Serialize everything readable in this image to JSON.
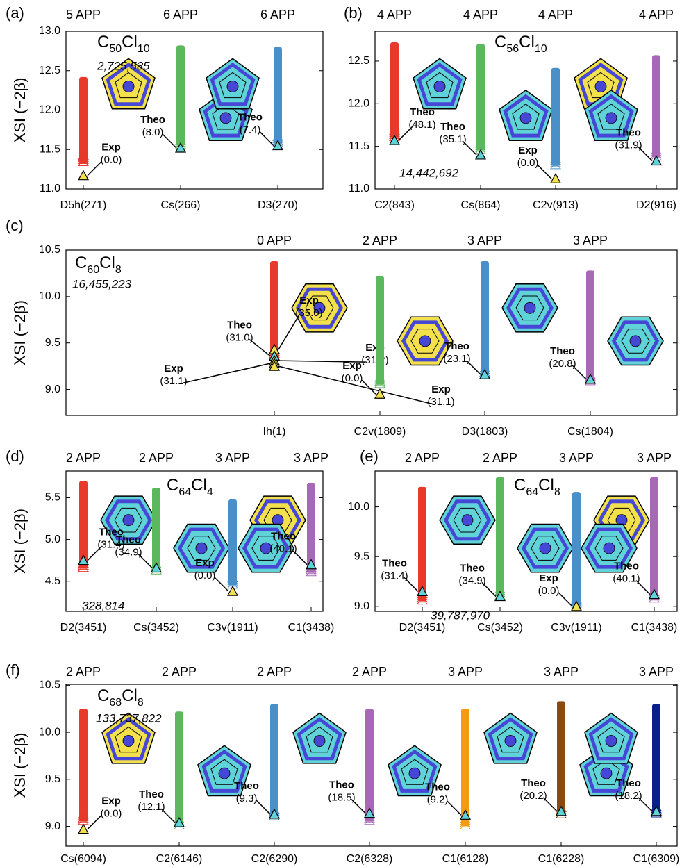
{
  "chart_data": [
    {
      "type": "range",
      "label": "(a)",
      "title": "C50Cl10",
      "count": "2,725,535",
      "ylabel": "XSI (−2β)",
      "ylim": [
        11.0,
        13.0
      ],
      "yticks": [
        {
          "value": 11,
          "label": "11.0"
        },
        11.5,
        {
          "value": 12,
          "label": "12.0"
        },
        12.5,
        {
          "value": 13,
          "label": "13.0"
        }
      ],
      "top_labels": [
        "5 APP",
        "6 APP",
        "6 APP"
      ],
      "categories": [
        "D5h(271)",
        "Cs(266)",
        "D3(270)"
      ],
      "ranges": [
        {
          "low": 11.33,
          "high": 12.42,
          "color": "#e8392b",
          "markers": [
            {
              "y": 11.17,
              "kind": "Exp",
              "energy": "(0.0)",
              "color": "#f2e14c"
            }
          ]
        },
        {
          "low": 11.55,
          "high": 12.82,
          "color": "#5cb85c",
          "markers": [
            {
              "y": 11.52,
              "kind": "Theo",
              "energy": "(8.0)",
              "color": "#5fd3d8"
            }
          ]
        },
        {
          "low": 11.57,
          "high": 12.8,
          "color": "#4a90c8",
          "markers": [
            {
              "y": 11.55,
              "kind": "Theo",
              "energy": "(7.4)",
              "color": "#5fd3d8"
            }
          ]
        }
      ]
    },
    {
      "type": "range",
      "label": "(b)",
      "title": "C56Cl10",
      "count": "14,442,692",
      "ylim": [
        11.0,
        12.85
      ],
      "yticks": [
        {
          "value": 11,
          "label": "11.0"
        },
        11.5,
        {
          "value": 12,
          "label": "12.0"
        },
        12.5
      ],
      "top_labels": [
        "4 APP",
        "4 APP",
        "4 APP",
        "4 APP"
      ],
      "categories": [
        "C2(843)",
        "Cs(864)",
        "C2v(913)",
        "D2(916)"
      ],
      "ranges": [
        {
          "low": 11.6,
          "high": 12.72,
          "color": "#e8392b",
          "markers": [
            {
              "y": 11.57,
              "kind": "Theo",
              "energy": "(48.1)",
              "color": "#5fd3d8"
            }
          ]
        },
        {
          "low": 11.45,
          "high": 12.7,
          "color": "#5cb85c",
          "markers": [
            {
              "y": 11.4,
              "kind": "Theo",
              "energy": "(35.1)",
              "color": "#5fd3d8"
            }
          ]
        },
        {
          "low": 11.27,
          "high": 12.42,
          "color": "#4a90c8",
          "markers": [
            {
              "y": 11.12,
              "kind": "Exp",
              "energy": "(0.0)",
              "color": "#f2e14c"
            }
          ]
        },
        {
          "low": 11.37,
          "high": 12.57,
          "color": "#a868b8",
          "markers": [
            {
              "y": 11.33,
              "kind": "Theo",
              "energy": "(31.9)",
              "color": "#5fd3d8"
            }
          ]
        }
      ]
    },
    {
      "type": "range",
      "label": "(c)",
      "title": "C60Cl8",
      "count": "16,455,223",
      "ylabel": "XSI (−2β)",
      "ylim": [
        8.72,
        10.5
      ],
      "yticks": [
        {
          "value": 9,
          "label": "9.0"
        },
        9.5,
        {
          "value": 10,
          "label": "10.0"
        },
        10.5
      ],
      "top_labels": [
        "0 APP",
        "2 APP",
        "3 APP",
        "3 APP"
      ],
      "categories": [
        "Ih(1)",
        "C2v(1809)",
        "D3(1803)",
        "Cs(1804)"
      ],
      "ranges": [
        {
          "low": 9.35,
          "high": 10.38,
          "color": "#e8392b",
          "markers": [
            {
              "y": 9.43,
              "kind": "Exp",
              "energy": "(35.0)",
              "color": "#f2e14c"
            },
            {
              "y": 9.36,
              "kind": "Theo",
              "energy": "(31.0)",
              "color": "#5fd3d8"
            },
            {
              "y": 9.31,
              "kind": "Exp",
              "energy": "(31.2)",
              "color": "#f2e14c"
            },
            {
              "y": 9.28,
              "kind": "Exp",
              "energy": "(31.1)",
              "color": "#f2e14c"
            },
            {
              "y": 9.25,
              "kind": "Exp",
              "energy": "(31.1)",
              "color": "#f2e14c"
            }
          ]
        },
        {
          "low": 9.05,
          "high": 10.22,
          "color": "#5cb85c",
          "markers": [
            {
              "y": 8.95,
              "kind": "Exp",
              "energy": "(0.0)",
              "color": "#f2e14c"
            }
          ]
        },
        {
          "low": 9.15,
          "high": 10.38,
          "color": "#4a90c8",
          "markers": [
            {
              "y": 9.16,
              "kind": "Theo",
              "energy": "(23.1)",
              "color": "#5fd3d8"
            }
          ]
        },
        {
          "low": 9.08,
          "high": 10.28,
          "color": "#a868b8",
          "markers": [
            {
              "y": 9.11,
              "kind": "Theo",
              "energy": "(20.8)",
              "color": "#5fd3d8"
            }
          ]
        }
      ]
    },
    {
      "type": "range",
      "label": "(d)",
      "title": "C64Cl4",
      "count": "328,814",
      "ylabel": "XSI (−2β)",
      "ylim": [
        4.14,
        5.82
      ],
      "yticks": [
        4.5,
        {
          "value": 5,
          "label": "5.0"
        },
        5.5
      ],
      "top_labels": [
        "2 APP",
        "2 APP",
        "3 APP",
        "3 APP"
      ],
      "categories": [
        "D2(3451)",
        "Cs(3452)",
        "C3v(1911)",
        "C1(3438)"
      ],
      "ranges": [
        {
          "low": 4.65,
          "high": 5.7,
          "color": "#e8392b",
          "markers": [
            {
              "y": 4.75,
              "kind": "Theo",
              "energy": "(31.4)",
              "color": "#5fd3d8"
            }
          ]
        },
        {
          "low": 4.62,
          "high": 5.62,
          "color": "#5cb85c",
          "markers": [
            {
              "y": 4.66,
              "kind": "Theo",
              "energy": "(34.9)",
              "color": "#5fd3d8"
            }
          ]
        },
        {
          "low": 4.45,
          "high": 5.48,
          "color": "#4a90c8",
          "markers": [
            {
              "y": 4.38,
              "kind": "Exp",
              "energy": "(0.0)",
              "color": "#f2e14c"
            }
          ]
        },
        {
          "low": 4.6,
          "high": 5.68,
          "color": "#a868b8",
          "markers": [
            {
              "y": 4.7,
              "kind": "Theo",
              "energy": "(40.1)",
              "color": "#5fd3d8"
            }
          ]
        }
      ]
    },
    {
      "type": "range",
      "label": "(e)",
      "title": "C64Cl8",
      "count": "39,787,970",
      "ylim": [
        8.95,
        10.36
      ],
      "yticks": [
        {
          "value": 9,
          "label": "9.0"
        },
        9.5,
        {
          "value": 10,
          "label": "10.0"
        }
      ],
      "top_labels": [
        "2 APP",
        "2 APP",
        "3 APP",
        "3 APP"
      ],
      "categories": [
        "D2(3451)",
        "Cs(3452)",
        "C3v(1911)",
        "C1(3438)"
      ],
      "ranges": [
        {
          "low": 9.05,
          "high": 10.2,
          "color": "#e8392b",
          "markers": [
            {
              "y": 9.15,
              "kind": "Theo",
              "energy": "(31.4)",
              "color": "#5fd3d8"
            }
          ]
        },
        {
          "low": 9.1,
          "high": 10.3,
          "color": "#5cb85c",
          "markers": [
            {
              "y": 9.1,
              "kind": "Theo",
              "energy": "(34.9)",
              "color": "#5fd3d8"
            }
          ]
        },
        {
          "low": 9.0,
          "high": 10.15,
          "color": "#4a90c8",
          "markers": [
            {
              "y": 9.0,
              "kind": "Exp",
              "energy": "(0.0)",
              "color": "#f2e14c"
            }
          ]
        },
        {
          "low": 9.07,
          "high": 10.3,
          "color": "#a868b8",
          "markers": [
            {
              "y": 9.12,
              "kind": "Theo",
              "energy": "(40.1)",
              "color": "#5fd3d8"
            }
          ]
        }
      ]
    },
    {
      "type": "range",
      "label": "(f)",
      "title": "C68Cl8",
      "count": "133,737,822",
      "ylabel": "XSI (−2β)",
      "ylim": [
        8.79,
        10.51
      ],
      "yticks": [
        {
          "value": 9,
          "label": "9.0"
        },
        9.5,
        {
          "value": 10,
          "label": "10.0"
        },
        10.5
      ],
      "top_labels": [
        "2 APP",
        "2 APP",
        "2 APP",
        "2 APP",
        "3 APP",
        "3 APP",
        "3 APP"
      ],
      "categories": [
        "Cs(6094)",
        "C2(6146)",
        "C2(6290)",
        "C2(6328)",
        "C1(6128)",
        "C1(6228)",
        "C1(6309)"
      ],
      "ranges": [
        {
          "low": 9.05,
          "high": 10.25,
          "color": "#e8392b",
          "markers": [
            {
              "y": 8.97,
              "kind": "Exp",
              "energy": "(0.0)",
              "color": "#f2e14c"
            }
          ]
        },
        {
          "low": 9.0,
          "high": 10.22,
          "color": "#5cb85c",
          "markers": [
            {
              "y": 9.04,
              "kind": "Theo",
              "energy": "(12.1)",
              "color": "#5fd3d8"
            }
          ]
        },
        {
          "low": 9.1,
          "high": 10.3,
          "color": "#4a90c8",
          "markers": [
            {
              "y": 9.13,
              "kind": "Theo",
              "energy": "(9.3)",
              "color": "#5fd3d8"
            }
          ]
        },
        {
          "low": 9.05,
          "high": 10.25,
          "color": "#a868b8",
          "markers": [
            {
              "y": 9.14,
              "kind": "Theo",
              "energy": "(18.5)",
              "color": "#5fd3d8"
            }
          ]
        },
        {
          "low": 9.0,
          "high": 10.25,
          "color": "#f39c12",
          "markers": [
            {
              "y": 9.12,
              "kind": "Theo",
              "energy": "(9.2)",
              "color": "#5fd3d8"
            }
          ]
        },
        {
          "low": 9.12,
          "high": 10.33,
          "color": "#8b4a0b",
          "markers": [
            {
              "y": 9.16,
              "kind": "Theo",
              "energy": "(20.2)",
              "color": "#5fd3d8"
            }
          ]
        },
        {
          "low": 9.13,
          "high": 10.3,
          "color": "#0a1f8a",
          "markers": [
            {
              "y": 9.16,
              "kind": "Theo",
              "energy": "(18.2)",
              "color": "#5fd3d8"
            }
          ]
        }
      ]
    }
  ]
}
